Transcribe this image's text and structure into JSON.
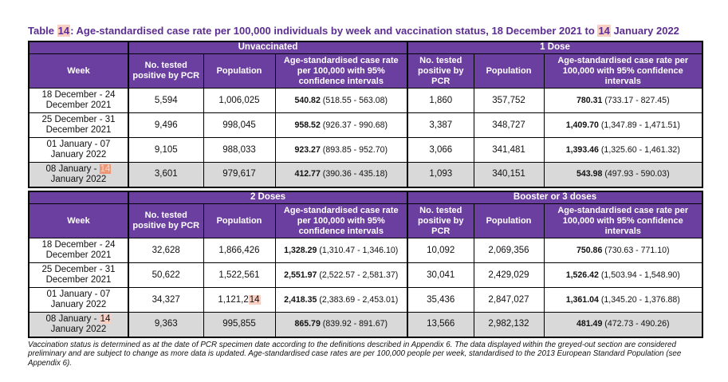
{
  "page": {
    "title_marked": "Table ⟦14⟧: Age-standardised case rate per 100,000 individuals by week and vaccination status, 18 December 2021 to ⟦14⟧ January 2022",
    "footnote": "Vaccination status is determined as at the date of PCR specimen date according to the definitions described in Appendix 6. The data displayed within the greyed-out section are considered preliminary and are subject to change as more data is updated. Age-standardised case rates are per 100,000 people per week, standardised to the 2013 European Standard Population (see Appendix 6)."
  },
  "colors": {
    "header_bg": "#6b3fa0",
    "header_text": "#ffffff",
    "title_text": "#5c2d91",
    "greyed_row_bg": "#d9d9d9",
    "highlight": "#f9cfc3",
    "highlight_active": "#ef9677",
    "border": "#000000"
  },
  "column_headers": {
    "week": "Week",
    "tested": "No. tested positive by PCR",
    "population": "Population",
    "rate": "Age-standardised case rate per 100,000 with 95% confidence intervals"
  },
  "tables": [
    {
      "groups": [
        "Unvaccinated",
        "1 Dose"
      ],
      "rows": [
        {
          "week": "18 December - 24 December 2021",
          "greyed": false,
          "cells": [
            {
              "tested": "5,594",
              "population": "1,006,025",
              "rate": "540.82",
              "ci": "(518.55 - 563.08)"
            },
            {
              "tested": "1,860",
              "population": "357,752",
              "rate": "780.31",
              "ci": "(733.17 - 827.45)"
            }
          ]
        },
        {
          "week": "25 December - 31 December 2021",
          "greyed": false,
          "cells": [
            {
              "tested": "9,496",
              "population": "998,045",
              "rate": "958.52",
              "ci": "(926.37 - 990.68)"
            },
            {
              "tested": "3,387",
              "population": "348,727",
              "rate": "1,409.70",
              "ci": "(1,347.89 - 1,471.51)"
            }
          ]
        },
        {
          "week": "01 January - 07 January 2022",
          "greyed": false,
          "cells": [
            {
              "tested": "9,105",
              "population": "988,033",
              "rate": "923.27",
              "ci": "(893.85 - 952.70)"
            },
            {
              "tested": "3,066",
              "population": "341,481",
              "rate": "1,393.46",
              "ci": "(1,325.60 - 1,461.32)"
            }
          ]
        },
        {
          "week": "08 January - ⟪14⟫ January 2022",
          "greyed": true,
          "cells": [
            {
              "tested": "3,601",
              "population": "979,617",
              "rate": "412.77",
              "ci": "(390.36 - 435.18)"
            },
            {
              "tested": "1,093",
              "population": "340,151",
              "rate": "543.98",
              "ci": "(497.93 - 590.03)"
            }
          ]
        }
      ]
    },
    {
      "groups": [
        "2 Doses",
        "Booster or 3 doses"
      ],
      "rows": [
        {
          "week": "18 December - 24 December 2021",
          "greyed": false,
          "cells": [
            {
              "tested": "32,628",
              "population": "1,866,426",
              "rate": "1,328.29",
              "ci": "(1,310.47 - 1,346.10)"
            },
            {
              "tested": "10,092",
              "population": "2,069,356",
              "rate": "750.86",
              "ci": "(730.63 - 771.10)"
            }
          ]
        },
        {
          "week": "25 December - 31 December 2021",
          "greyed": false,
          "cells": [
            {
              "tested": "50,622",
              "population": "1,522,561",
              "rate": "2,551.97",
              "ci": "(2,522.57 - 2,581.37)"
            },
            {
              "tested": "30,041",
              "population": "2,429,029",
              "rate": "1,526.42",
              "ci": "(1,503.94 - 1,548.90)"
            }
          ]
        },
        {
          "week": "01 January - 07 January 2022",
          "greyed": false,
          "cells": [
            {
              "tested": "34,327",
              "population": "1,121,2⟦14⟧",
              "rate": "2,418.35",
              "ci": "(2,383.69 - 2,453.01)"
            },
            {
              "tested": "35,436",
              "population": "2,847,027",
              "rate": "1,361.04",
              "ci": "(1,345.20 - 1,376.88)"
            }
          ]
        },
        {
          "week": "08 January - ⟦14⟧ January 2022",
          "greyed": true,
          "cells": [
            {
              "tested": "9,363",
              "population": "995,855",
              "rate": "865.79",
              "ci": "(839.92 - 891.67)"
            },
            {
              "tested": "13,566",
              "population": "2,982,132",
              "rate": "481.49",
              "ci": "(472.73 - 490.26)"
            }
          ]
        }
      ]
    }
  ]
}
